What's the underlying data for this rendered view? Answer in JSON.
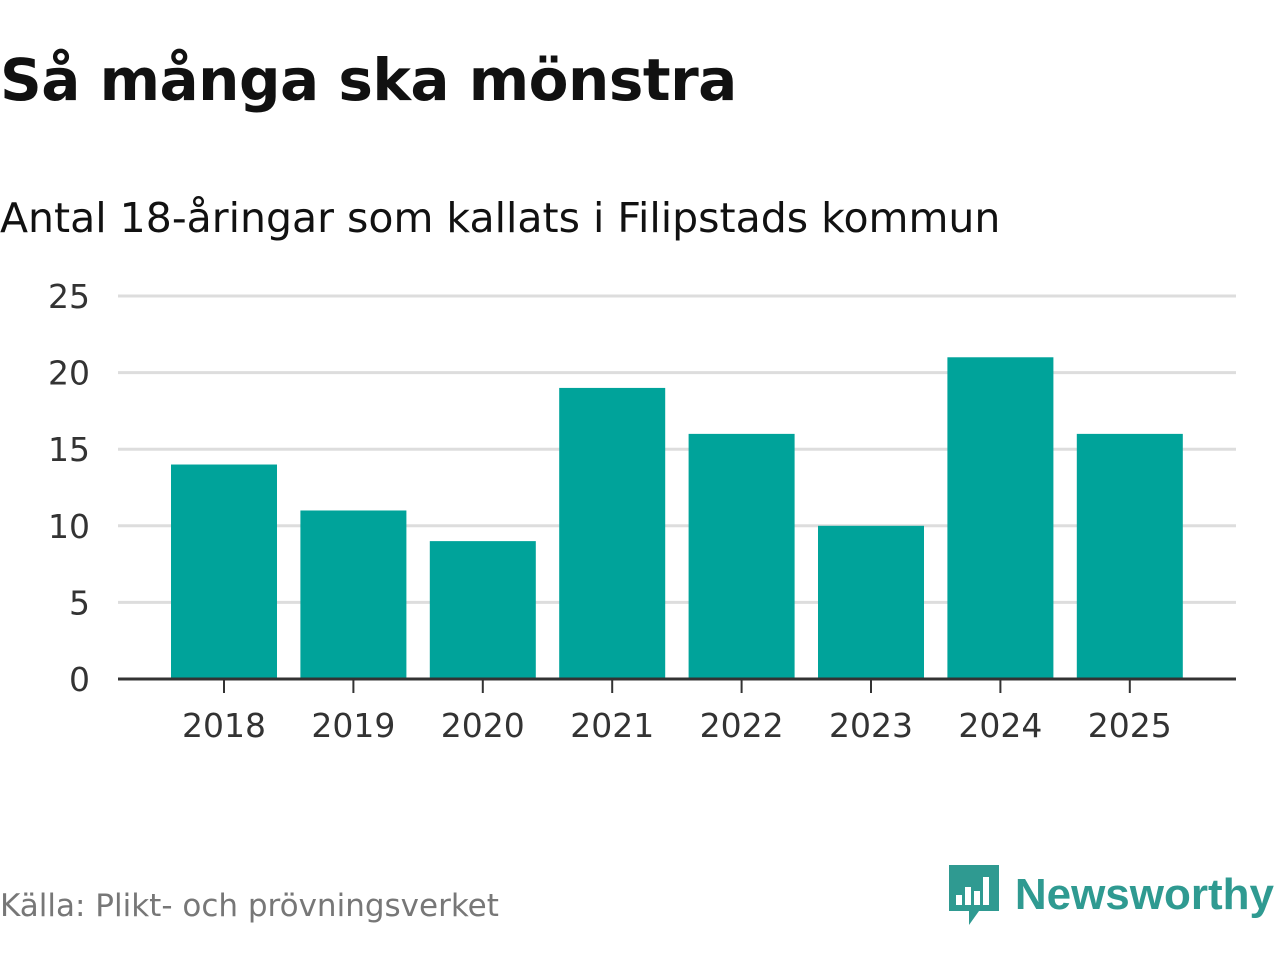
{
  "colors": {
    "bar": "#00a39a",
    "grid": "#dddddd",
    "axis": "#333333",
    "brand": "#2f9a91",
    "source": "#777777"
  },
  "source_text": "Källa: Plikt- och prövningsverket",
  "brand": {
    "name": "Newsworthy",
    "icon": "newsworthy-logo-icon"
  },
  "chart_data": {
    "type": "bar",
    "title": "Så många ska mönstra",
    "subtitle": "Antal 18-åringar som kallats i Filipstads kommun",
    "xlabel": "",
    "ylabel": "",
    "categories": [
      "2018",
      "2019",
      "2020",
      "2021",
      "2022",
      "2023",
      "2024",
      "2025"
    ],
    "values": [
      14,
      11,
      9,
      19,
      16,
      10,
      21,
      16
    ],
    "ylim": [
      0,
      25
    ],
    "yticks": [
      "0",
      "5",
      "10",
      "15",
      "20",
      "25"
    ],
    "grid": true,
    "legend": "none"
  }
}
